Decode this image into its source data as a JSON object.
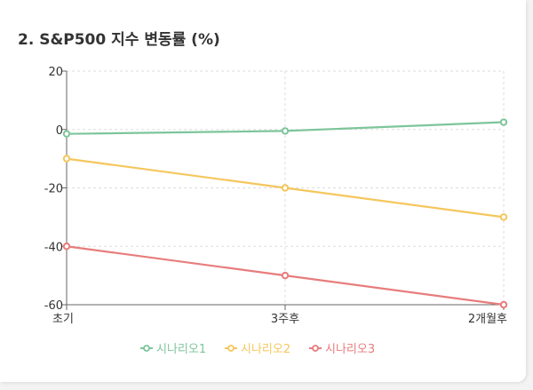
{
  "title": "2. S&P500 지수 변동률 (%)",
  "chart_data": {
    "type": "line",
    "categories": [
      "초기",
      "3주후",
      "2개월후"
    ],
    "series": [
      {
        "name": "시나리오1",
        "values": [
          -1.5,
          -0.5,
          2.5
        ],
        "color": "#7dc59a"
      },
      {
        "name": "시나리오2",
        "values": [
          -10,
          -20,
          -30
        ],
        "color": "#f5c65c"
      },
      {
        "name": "시나리오3",
        "values": [
          -40,
          -50,
          -60
        ],
        "color": "#e87c7c"
      }
    ],
    "ylim": [
      -60,
      20
    ],
    "yticks": [
      20,
      0,
      -20,
      -40,
      -60
    ],
    "grid": true,
    "legend": "bottom"
  }
}
